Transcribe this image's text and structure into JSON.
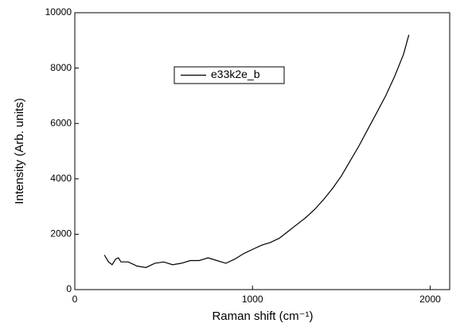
{
  "chart_data": {
    "type": "line",
    "x_label": "Raman shift (cm⁻¹)",
    "y_label": "Intensity (Arb. units)",
    "xlim": [
      0,
      2110
    ],
    "xticks": [
      0,
      1000,
      2000
    ],
    "ylim": [
      0,
      10000
    ],
    "yticks": [
      0,
      2000,
      4000,
      6000,
      8000,
      10000
    ],
    "legend": "upper-left",
    "series": [
      {
        "name": "e33k2e_b",
        "color": "#000000",
        "x": [
          166,
          190,
          210,
          230,
          245,
          260,
          300,
          350,
          400,
          450,
          500,
          550,
          600,
          650,
          700,
          750,
          800,
          850,
          900,
          950,
          1000,
          1050,
          1100,
          1150,
          1200,
          1250,
          1300,
          1350,
          1400,
          1450,
          1500,
          1550,
          1600,
          1650,
          1700,
          1750,
          1800,
          1850,
          1880
        ],
        "values": [
          1250,
          1000,
          900,
          1100,
          1150,
          1000,
          1000,
          850,
          800,
          950,
          1000,
          900,
          950,
          1050,
          1050,
          1150,
          1050,
          950,
          1100,
          1300,
          1450,
          1600,
          1700,
          1850,
          2100,
          2350,
          2600,
          2900,
          3250,
          3650,
          4100,
          4650,
          5200,
          5800,
          6400,
          7000,
          7700,
          8500,
          9200
        ]
      }
    ]
  }
}
